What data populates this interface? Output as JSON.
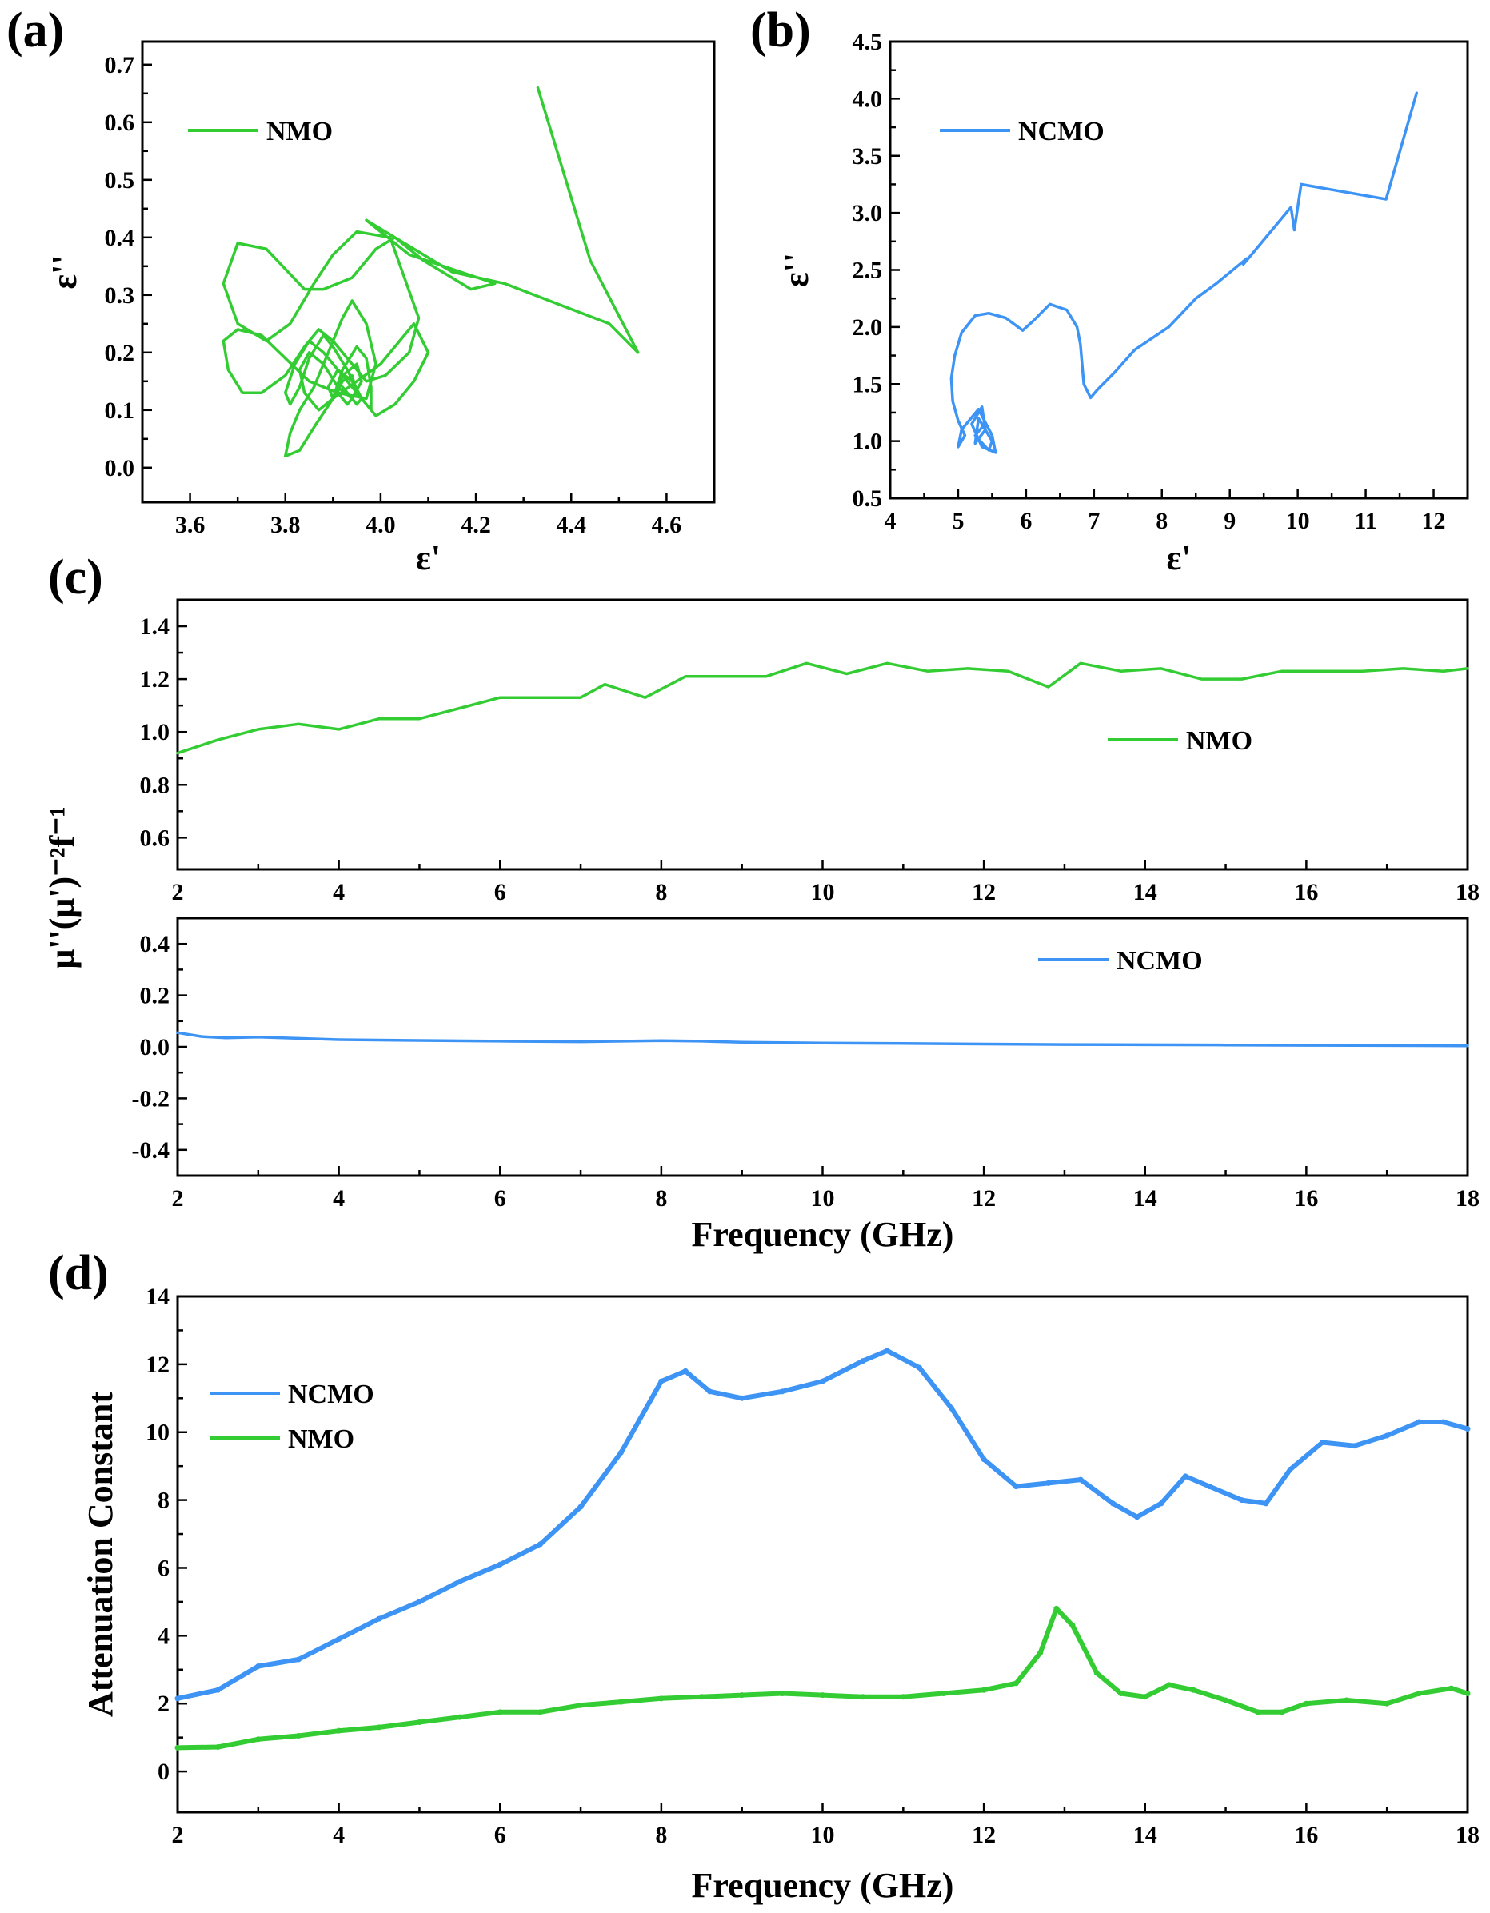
{
  "colors": {
    "nmo": "#33cc33",
    "ncmo": "#3d94f5",
    "axis": "#000000"
  },
  "panels": {
    "a": {
      "label": "(a)"
    },
    "b": {
      "label": "(b)"
    },
    "c": {
      "label": "(c)"
    },
    "d": {
      "label": "(d)"
    }
  },
  "chart_data": [
    {
      "id": "a",
      "type": "line",
      "xlabel": "ε'",
      "ylabel": "ε''",
      "xlim": [
        3.5,
        4.7
      ],
      "ylim": [
        -0.06,
        0.74
      ],
      "xticks": [
        "3.6",
        "3.8",
        "4.0",
        "4.2",
        "4.4",
        "4.6"
      ],
      "yticks": [
        "0.0",
        "0.1",
        "0.2",
        "0.3",
        "0.4",
        "0.5",
        "0.6",
        "0.7"
      ],
      "legend": "top-left",
      "series": [
        {
          "name": "NMO",
          "color": "#33cc33",
          "x": [
            4.33,
            4.44,
            4.54,
            4.48,
            4.26,
            4.15,
            3.97,
            4.06,
            4.24,
            4.19,
            4.09,
            4.03,
            3.99,
            3.94,
            3.88,
            3.84,
            3.76,
            3.7,
            3.67,
            3.7,
            3.76,
            3.81,
            3.86,
            3.9,
            3.95,
            4.02,
            4.05,
            4.08,
            4.06,
            4.01,
            3.97,
            3.94,
            3.9,
            3.87,
            3.84,
            3.8,
            3.75,
            3.71,
            3.68,
            3.67,
            3.7,
            3.75,
            3.8,
            3.85,
            3.91,
            3.97,
            3.99,
            3.97,
            3.94,
            3.92,
            3.89,
            3.86,
            3.83,
            3.81,
            3.8,
            3.83,
            3.86,
            3.9,
            3.95,
            4.0,
            4.04,
            4.07,
            4.1,
            4.07,
            4.03,
            3.99,
            3.96,
            3.93,
            3.9,
            3.88,
            3.85,
            3.83,
            3.81,
            3.8,
            3.82,
            3.85,
            3.88,
            3.93,
            3.96,
            3.98,
            3.98,
            3.97,
            3.95,
            3.92,
            3.9,
            3.87,
            3.84,
            3.83,
            3.85,
            3.88,
            3.91,
            3.94,
            3.96,
            3.95,
            3.92,
            3.91,
            3.93,
            3.95,
            3.94,
            3.92,
            3.9,
            3.89,
            3.91,
            3.94,
            3.96,
            3.95,
            3.93,
            3.92
          ],
          "y": [
            0.66,
            0.36,
            0.2,
            0.25,
            0.32,
            0.34,
            0.43,
            0.37,
            0.32,
            0.31,
            0.36,
            0.4,
            0.38,
            0.33,
            0.31,
            0.31,
            0.38,
            0.39,
            0.32,
            0.25,
            0.22,
            0.25,
            0.32,
            0.37,
            0.41,
            0.4,
            0.33,
            0.26,
            0.2,
            0.16,
            0.15,
            0.18,
            0.22,
            0.24,
            0.21,
            0.16,
            0.13,
            0.13,
            0.17,
            0.22,
            0.24,
            0.23,
            0.19,
            0.15,
            0.13,
            0.12,
            0.18,
            0.25,
            0.29,
            0.26,
            0.2,
            0.14,
            0.1,
            0.06,
            0.02,
            0.03,
            0.07,
            0.12,
            0.15,
            0.18,
            0.22,
            0.25,
            0.2,
            0.15,
            0.11,
            0.09,
            0.12,
            0.17,
            0.21,
            0.23,
            0.19,
            0.14,
            0.11,
            0.13,
            0.18,
            0.22,
            0.2,
            0.15,
            0.12,
            0.1,
            0.14,
            0.19,
            0.21,
            0.17,
            0.12,
            0.1,
            0.13,
            0.17,
            0.2,
            0.18,
            0.14,
            0.12,
            0.15,
            0.18,
            0.16,
            0.13,
            0.11,
            0.13,
            0.16,
            0.15,
            0.12,
            0.14,
            0.17,
            0.15,
            0.12,
            0.11,
            0.13,
            0.14
          ]
        }
      ]
    },
    {
      "id": "b",
      "type": "line",
      "xlabel": "ε'",
      "ylabel": "ε''",
      "xlim": [
        4,
        12.5
      ],
      "ylim": [
        0.5,
        4.5
      ],
      "xticks": [
        "4",
        "5",
        "6",
        "7",
        "8",
        "9",
        "10",
        "11",
        "12"
      ],
      "yticks": [
        "0.5",
        "1.0",
        "1.5",
        "2.0",
        "2.5",
        "3.0",
        "3.5",
        "4.0",
        "4.5"
      ],
      "legend": "top-left",
      "series": [
        {
          "name": "NCMO",
          "color": "#3d94f5",
          "x": [
            11.75,
            11.3,
            10.05,
            9.95,
            9.9,
            9.3,
            9.2,
            9.25,
            8.8,
            8.5,
            8.1,
            7.6,
            7.3,
            7.05,
            6.95,
            6.85,
            6.8,
            6.75,
            6.6,
            6.35,
            6.1,
            5.95,
            5.7,
            5.45,
            5.25,
            5.05,
            4.95,
            4.9,
            4.92,
            5.0,
            5.1,
            5.0,
            5.05,
            5.3,
            5.5,
            5.55,
            5.35,
            5.2,
            5.35,
            5.4,
            5.25,
            5.3,
            5.5,
            5.45,
            5.25,
            5.35
          ],
          "y": [
            4.05,
            3.12,
            3.25,
            2.85,
            3.05,
            2.62,
            2.55,
            2.6,
            2.38,
            2.25,
            2.0,
            1.8,
            1.6,
            1.45,
            1.38,
            1.5,
            1.85,
            2.0,
            2.15,
            2.2,
            2.05,
            1.97,
            2.08,
            2.12,
            2.1,
            1.95,
            1.75,
            1.55,
            1.35,
            1.18,
            1.05,
            0.95,
            1.1,
            1.28,
            1.05,
            0.9,
            0.95,
            1.15,
            1.3,
            1.1,
            0.98,
            1.2,
            1.0,
            0.92,
            1.05,
            1.12
          ]
        }
      ]
    },
    {
      "id": "c-top",
      "type": "line",
      "xlabel": "",
      "ylabel": "μ''(μ')⁻²f⁻¹",
      "xlim": [
        2,
        18
      ],
      "ylim": [
        0.48,
        1.5
      ],
      "xticks": [
        "2",
        "4",
        "6",
        "8",
        "10",
        "12",
        "14",
        "16",
        "18"
      ],
      "yticks": [
        "0.6",
        "0.8",
        "1.0",
        "1.2",
        "1.4"
      ],
      "legend": "middle-right",
      "series": [
        {
          "name": "NMO",
          "color": "#33cc33",
          "x": [
            2,
            2.5,
            3,
            3.5,
            4,
            4.5,
            5,
            5.5,
            6,
            6.5,
            7,
            7.3,
            7.8,
            8.3,
            8.8,
            9.3,
            9.8,
            10.3,
            10.8,
            11.3,
            11.8,
            12.3,
            12.8,
            13.2,
            13.7,
            14.2,
            14.7,
            15.2,
            15.7,
            16.2,
            16.7,
            17.2,
            17.7,
            18
          ],
          "y": [
            0.92,
            0.97,
            1.01,
            1.03,
            1.01,
            1.05,
            1.05,
            1.09,
            1.13,
            1.13,
            1.13,
            1.18,
            1.13,
            1.21,
            1.21,
            1.21,
            1.26,
            1.22,
            1.26,
            1.23,
            1.24,
            1.23,
            1.17,
            1.26,
            1.23,
            1.24,
            1.2,
            1.2,
            1.23,
            1.23,
            1.23,
            1.24,
            1.23,
            1.24
          ]
        }
      ]
    },
    {
      "id": "c-bottom",
      "type": "line",
      "xlabel": "Frequency (GHz)",
      "ylabel": "μ''(μ')⁻²f⁻¹",
      "xlim": [
        2,
        18
      ],
      "ylim": [
        -0.5,
        0.5
      ],
      "xticks": [
        "2",
        "4",
        "6",
        "8",
        "10",
        "12",
        "14",
        "16",
        "18"
      ],
      "yticks": [
        "-0.4",
        "-0.2",
        "0.0",
        "0.2",
        "0.4"
      ],
      "legend": "top-right",
      "series": [
        {
          "name": "NCMO",
          "color": "#3d94f5",
          "x": [
            2,
            2.3,
            2.6,
            3,
            3.5,
            4,
            5,
            6,
            7,
            8,
            8.5,
            9,
            10,
            11,
            12,
            13,
            14,
            15,
            16,
            17,
            18
          ],
          "y": [
            0.055,
            0.04,
            0.035,
            0.038,
            0.033,
            0.028,
            0.025,
            0.022,
            0.02,
            0.024,
            0.022,
            0.018,
            0.015,
            0.013,
            0.011,
            0.009,
            0.008,
            0.007,
            0.006,
            0.005,
            0.004
          ]
        }
      ]
    },
    {
      "id": "d",
      "type": "line",
      "xlabel": "Frequency (GHz)",
      "ylabel": "Attenuation Constant",
      "xlim": [
        2,
        18
      ],
      "ylim": [
        -1.2,
        14
      ],
      "xticks": [
        "2",
        "4",
        "6",
        "8",
        "10",
        "12",
        "14",
        "16",
        "18"
      ],
      "yticks": [
        "0",
        "2",
        "4",
        "6",
        "8",
        "10",
        "12",
        "14"
      ],
      "legend": "top-left",
      "series": [
        {
          "name": "NCMO",
          "color": "#3d94f5",
          "x": [
            2,
            2.5,
            3,
            3.5,
            4,
            4.5,
            5,
            5.5,
            6,
            6.5,
            7,
            7.5,
            8,
            8.3,
            8.6,
            9,
            9.5,
            10,
            10.5,
            10.8,
            11.2,
            11.6,
            12,
            12.4,
            12.8,
            13.2,
            13.6,
            13.9,
            14.2,
            14.5,
            14.8,
            15.2,
            15.5,
            15.8,
            16.2,
            16.6,
            17,
            17.4,
            17.7,
            18
          ],
          "y": [
            2.15,
            2.4,
            3.1,
            3.3,
            3.9,
            4.5,
            5.0,
            5.6,
            6.1,
            6.7,
            7.8,
            9.4,
            11.5,
            11.8,
            11.2,
            11.0,
            11.2,
            11.5,
            12.1,
            12.4,
            11.9,
            10.7,
            9.2,
            8.4,
            8.5,
            8.6,
            7.9,
            7.5,
            7.9,
            8.7,
            8.4,
            8.0,
            7.9,
            8.9,
            9.7,
            9.6,
            9.9,
            10.3,
            10.3,
            10.1
          ]
        },
        {
          "name": "NMO",
          "color": "#33cc33",
          "x": [
            2,
            2.5,
            3,
            3.5,
            4,
            4.5,
            5,
            5.5,
            6,
            6.5,
            7,
            7.5,
            8,
            8.5,
            9,
            9.5,
            10,
            10.5,
            11,
            11.5,
            12,
            12.4,
            12.7,
            12.9,
            13.1,
            13.4,
            13.7,
            14,
            14.3,
            14.6,
            15,
            15.4,
            15.7,
            16,
            16.5,
            17,
            17.4,
            17.8,
            18
          ],
          "y": [
            0.7,
            0.72,
            0.95,
            1.05,
            1.2,
            1.3,
            1.45,
            1.6,
            1.75,
            1.75,
            1.95,
            2.05,
            2.15,
            2.2,
            2.25,
            2.3,
            2.25,
            2.2,
            2.2,
            2.3,
            2.4,
            2.6,
            3.5,
            4.8,
            4.3,
            2.9,
            2.3,
            2.2,
            2.55,
            2.4,
            2.1,
            1.75,
            1.75,
            2.0,
            2.1,
            2.0,
            2.3,
            2.45,
            2.3
          ]
        }
      ]
    }
  ]
}
